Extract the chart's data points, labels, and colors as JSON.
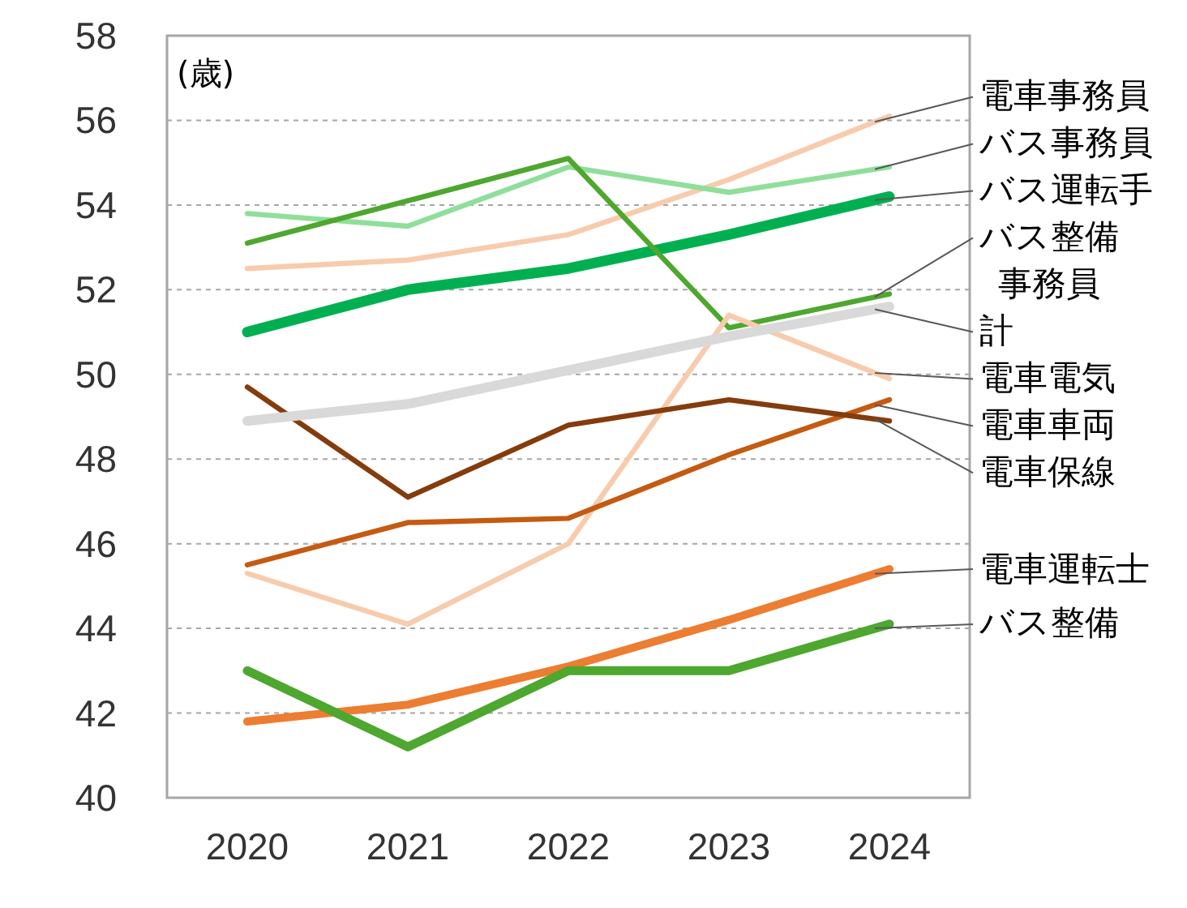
{
  "chart_data": {
    "type": "line",
    "ylabel": "(歳)",
    "categories": [
      "2020",
      "2021",
      "2022",
      "2023",
      "2024"
    ],
    "ylim": [
      40,
      58
    ],
    "yticks": [
      40,
      42,
      44,
      46,
      48,
      50,
      52,
      54,
      56,
      58
    ],
    "grid": "y",
    "series": [
      {
        "name": "電車事務員",
        "color": "#F8CBAD",
        "values": [
          52.5,
          52.7,
          53.3,
          54.6,
          56.1
        ]
      },
      {
        "name": "バス事務員",
        "color": "#8FDF9A",
        "values": [
          53.8,
          53.5,
          54.9,
          54.3,
          54.9
        ]
      },
      {
        "name": "バス運転手",
        "color": "#00B050",
        "values": [
          51.0,
          52.0,
          52.5,
          53.3,
          54.2
        ]
      },
      {
        "name": "バス整備事務員",
        "color": "#4EA72E",
        "values": [
          53.1,
          54.1,
          55.1,
          51.1,
          51.9
        ]
      },
      {
        "name": "電車電気",
        "color": "#F8CBAD",
        "values": [
          45.3,
          44.1,
          46.0,
          51.4,
          49.9
        ]
      },
      {
        "name": "電車車両",
        "color": "#C55A11",
        "values": [
          45.5,
          46.5,
          46.6,
          48.1,
          49.4
        ]
      },
      {
        "name": "電車保線",
        "color": "#843C0C",
        "values": [
          49.7,
          47.1,
          48.8,
          49.4,
          48.9
        ]
      },
      {
        "name": "電車運転士",
        "color": "#ED7D31",
        "values": [
          41.8,
          42.2,
          43.1,
          44.2,
          45.4
        ]
      },
      {
        "name": "バス整備",
        "color": "#4EA72E",
        "values": [
          43.0,
          41.2,
          43.0,
          43.0,
          44.1
        ]
      },
      {
        "name": "計",
        "color": "#D9D9D9",
        "values": [
          48.9,
          49.3,
          50.1,
          50.9,
          51.6
        ]
      }
    ]
  }
}
